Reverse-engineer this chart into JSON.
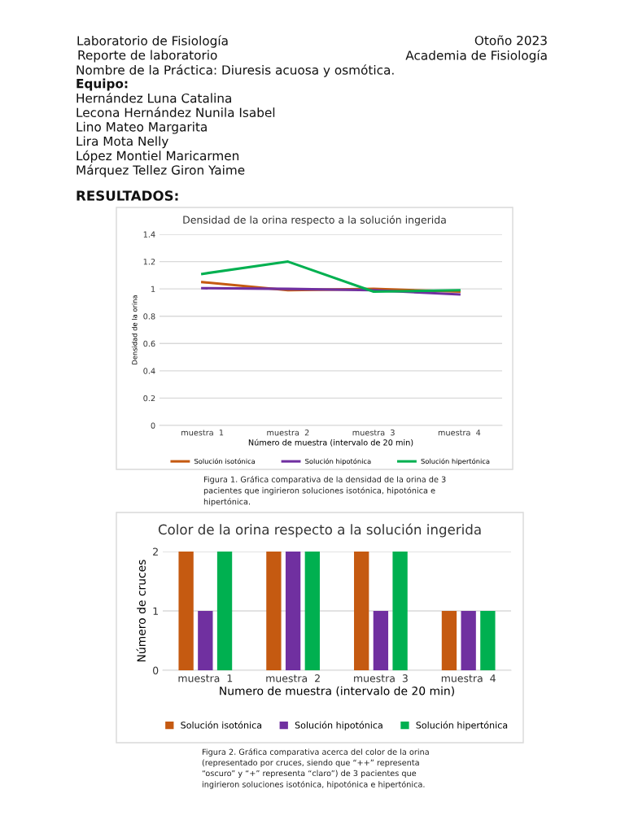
{
  "chart_data": [
    {
      "type": "line",
      "title": "Densidad de la orina respecto a la solución ingerida",
      "xlabel": "Número de muestra (intervalo de 20 min)",
      "ylabel": "Densidad de la orina",
      "categories": [
        "muestra  1",
        "muestra  2",
        "muestra  3",
        "muestra  4"
      ],
      "series": [
        {
          "name": "Solución isotónica",
          "color": "#c55a11",
          "values": [
            1.05,
            0.99,
            1.0,
            0.98
          ]
        },
        {
          "name": "Solución hipotónica",
          "color": "#7030a0",
          "values": [
            1.005,
            1.0,
            0.99,
            0.96
          ]
        },
        {
          "name": "Solución hipertónica",
          "color": "#00b050",
          "values": [
            1.11,
            1.2,
            0.98,
            0.99
          ]
        }
      ],
      "ylim": [
        0,
        1.4
      ],
      "yticks": [
        0,
        0.2,
        0.4,
        0.6,
        0.8,
        1,
        1.2,
        1.4
      ],
      "grid": "y",
      "legend": "bottom",
      "marker": "none",
      "line_style": "solid",
      "annotations": [
        "Laboratorio de Fisiología",
        "Otoño 2023",
        "Reporte de laboratorio",
        "Academia de Fisiología",
        "Nombre de la Práctica: Diuresis acuosa y osmótica.",
        "Equipo:",
        "Hernández Luna Catalina",
        "Lecona Hernández Nunila Isabel",
        "Lino Mateo Margarita",
        "Lira Mota Nelly",
        "López Montiel Maricarmen",
        "Márquez Tellez Giron Yaime",
        "RESULTADOS:",
        "Figura 1. Gráfica comparativa de la densidad de la orina de 3 pacientes que ingirieron soluciones isotónica, hipotónica e hipertónica."
      ]
    },
    {
      "type": "bar",
      "title": "Color de la orina respecto a la solución ingerida",
      "xlabel": "Numero de muestra (intervalo de 20 min)",
      "ylabel": "Número de cruces",
      "categories": [
        "muestra  1",
        "muestra  2",
        "muestra  3",
        "muestra  4"
      ],
      "series": [
        {
          "name": "Solución isotónica",
          "color": "#c55a11",
          "values": [
            2,
            2,
            2,
            1
          ]
        },
        {
          "name": "Solución hipotónica",
          "color": "#7030a0",
          "values": [
            1,
            2,
            1,
            1
          ]
        },
        {
          "name": "Solución hipertónica",
          "color": "#00b050",
          "values": [
            2,
            2,
            2,
            1
          ]
        }
      ],
      "ylim": [
        0,
        2
      ],
      "yticks": [
        0,
        1,
        2
      ],
      "grid": "y",
      "legend": "bottom",
      "annotations": [
        "Figura 2. Gráfica comparativa acerca del color de la orina (representado por cruces, siendo que “++” representa “oscuro” y “+” representa “claro”) de 3 pacientes que ingirieron soluciones isotónica, hipotónica e hipertónica."
      ]
    }
  ]
}
